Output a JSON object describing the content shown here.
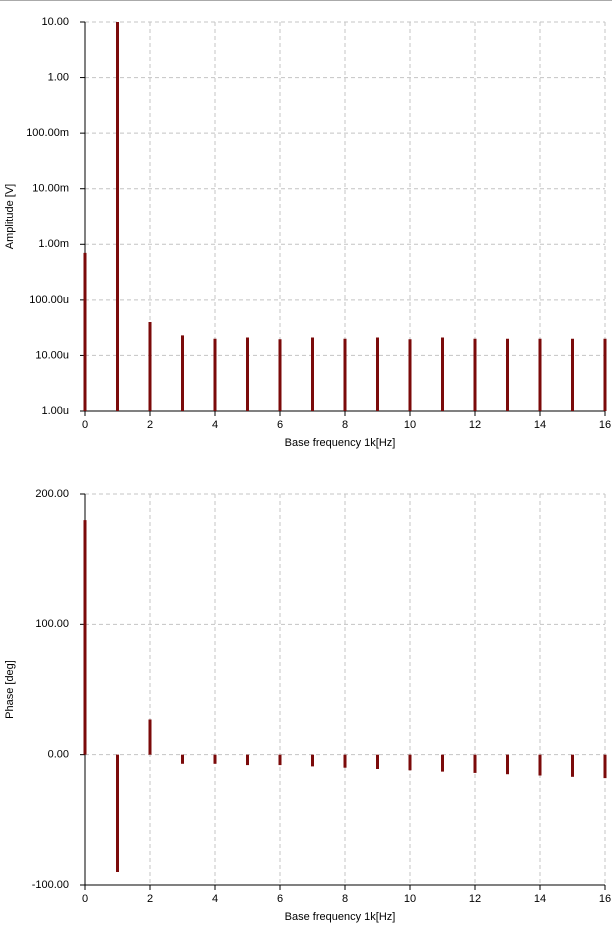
{
  "chart_data": [
    {
      "type": "stem",
      "yscale": "log",
      "color": "#7b0a0a",
      "grid": true,
      "x_label": "Base frequency 1k[Hz]",
      "y_label": "Amplitude [V]",
      "x": [
        0,
        1,
        2,
        3,
        4,
        5,
        6,
        7,
        8,
        9,
        10,
        11,
        12,
        13,
        14,
        15,
        16
      ],
      "values": [
        0.0007,
        10,
        4e-05,
        2.3e-05,
        2e-05,
        2.1e-05,
        1.95e-05,
        2.1e-05,
        2e-05,
        2.1e-05,
        1.95e-05,
        2.1e-05,
        2e-05,
        2e-05,
        2e-05,
        2e-05,
        2e-05
      ],
      "xlim": [
        0,
        16
      ],
      "xticks": [
        0,
        2,
        4,
        6,
        8,
        10,
        12,
        14,
        16
      ],
      "ylim": [
        1e-06,
        10
      ],
      "yticks": [
        {
          "value": 1e-06,
          "label": "1.00u"
        },
        {
          "value": 1e-05,
          "label": "10.00u"
        },
        {
          "value": 0.0001,
          "label": "100.00u"
        },
        {
          "value": 0.001,
          "label": "1.00m"
        },
        {
          "value": 0.01,
          "label": "10.00m"
        },
        {
          "value": 0.1,
          "label": "100.00m"
        },
        {
          "value": 1,
          "label": "1.00"
        },
        {
          "value": 10,
          "label": "10.00"
        }
      ]
    },
    {
      "type": "stem",
      "yscale": "linear",
      "color": "#7b0a0a",
      "grid": true,
      "x_label": "Base frequency 1k[Hz]",
      "y_label": "Phase [deg]",
      "x": [
        0,
        1,
        2,
        3,
        4,
        5,
        6,
        7,
        8,
        9,
        10,
        11,
        12,
        13,
        14,
        15,
        16
      ],
      "values": [
        180,
        -90,
        27,
        -7,
        -7,
        -8,
        -8,
        -9,
        -10,
        -11,
        -12,
        -13,
        -14,
        -15,
        -16,
        -17,
        -18
      ],
      "xlim": [
        0,
        16
      ],
      "xticks": [
        0,
        2,
        4,
        6,
        8,
        10,
        12,
        14,
        16
      ],
      "ylim": [
        -100,
        200
      ],
      "yticks": [
        {
          "value": -100,
          "label": "-100.00"
        },
        {
          "value": 0,
          "label": "0.00"
        },
        {
          "value": 100,
          "label": "100.00"
        },
        {
          "value": 200,
          "label": "200.00"
        }
      ]
    }
  ]
}
